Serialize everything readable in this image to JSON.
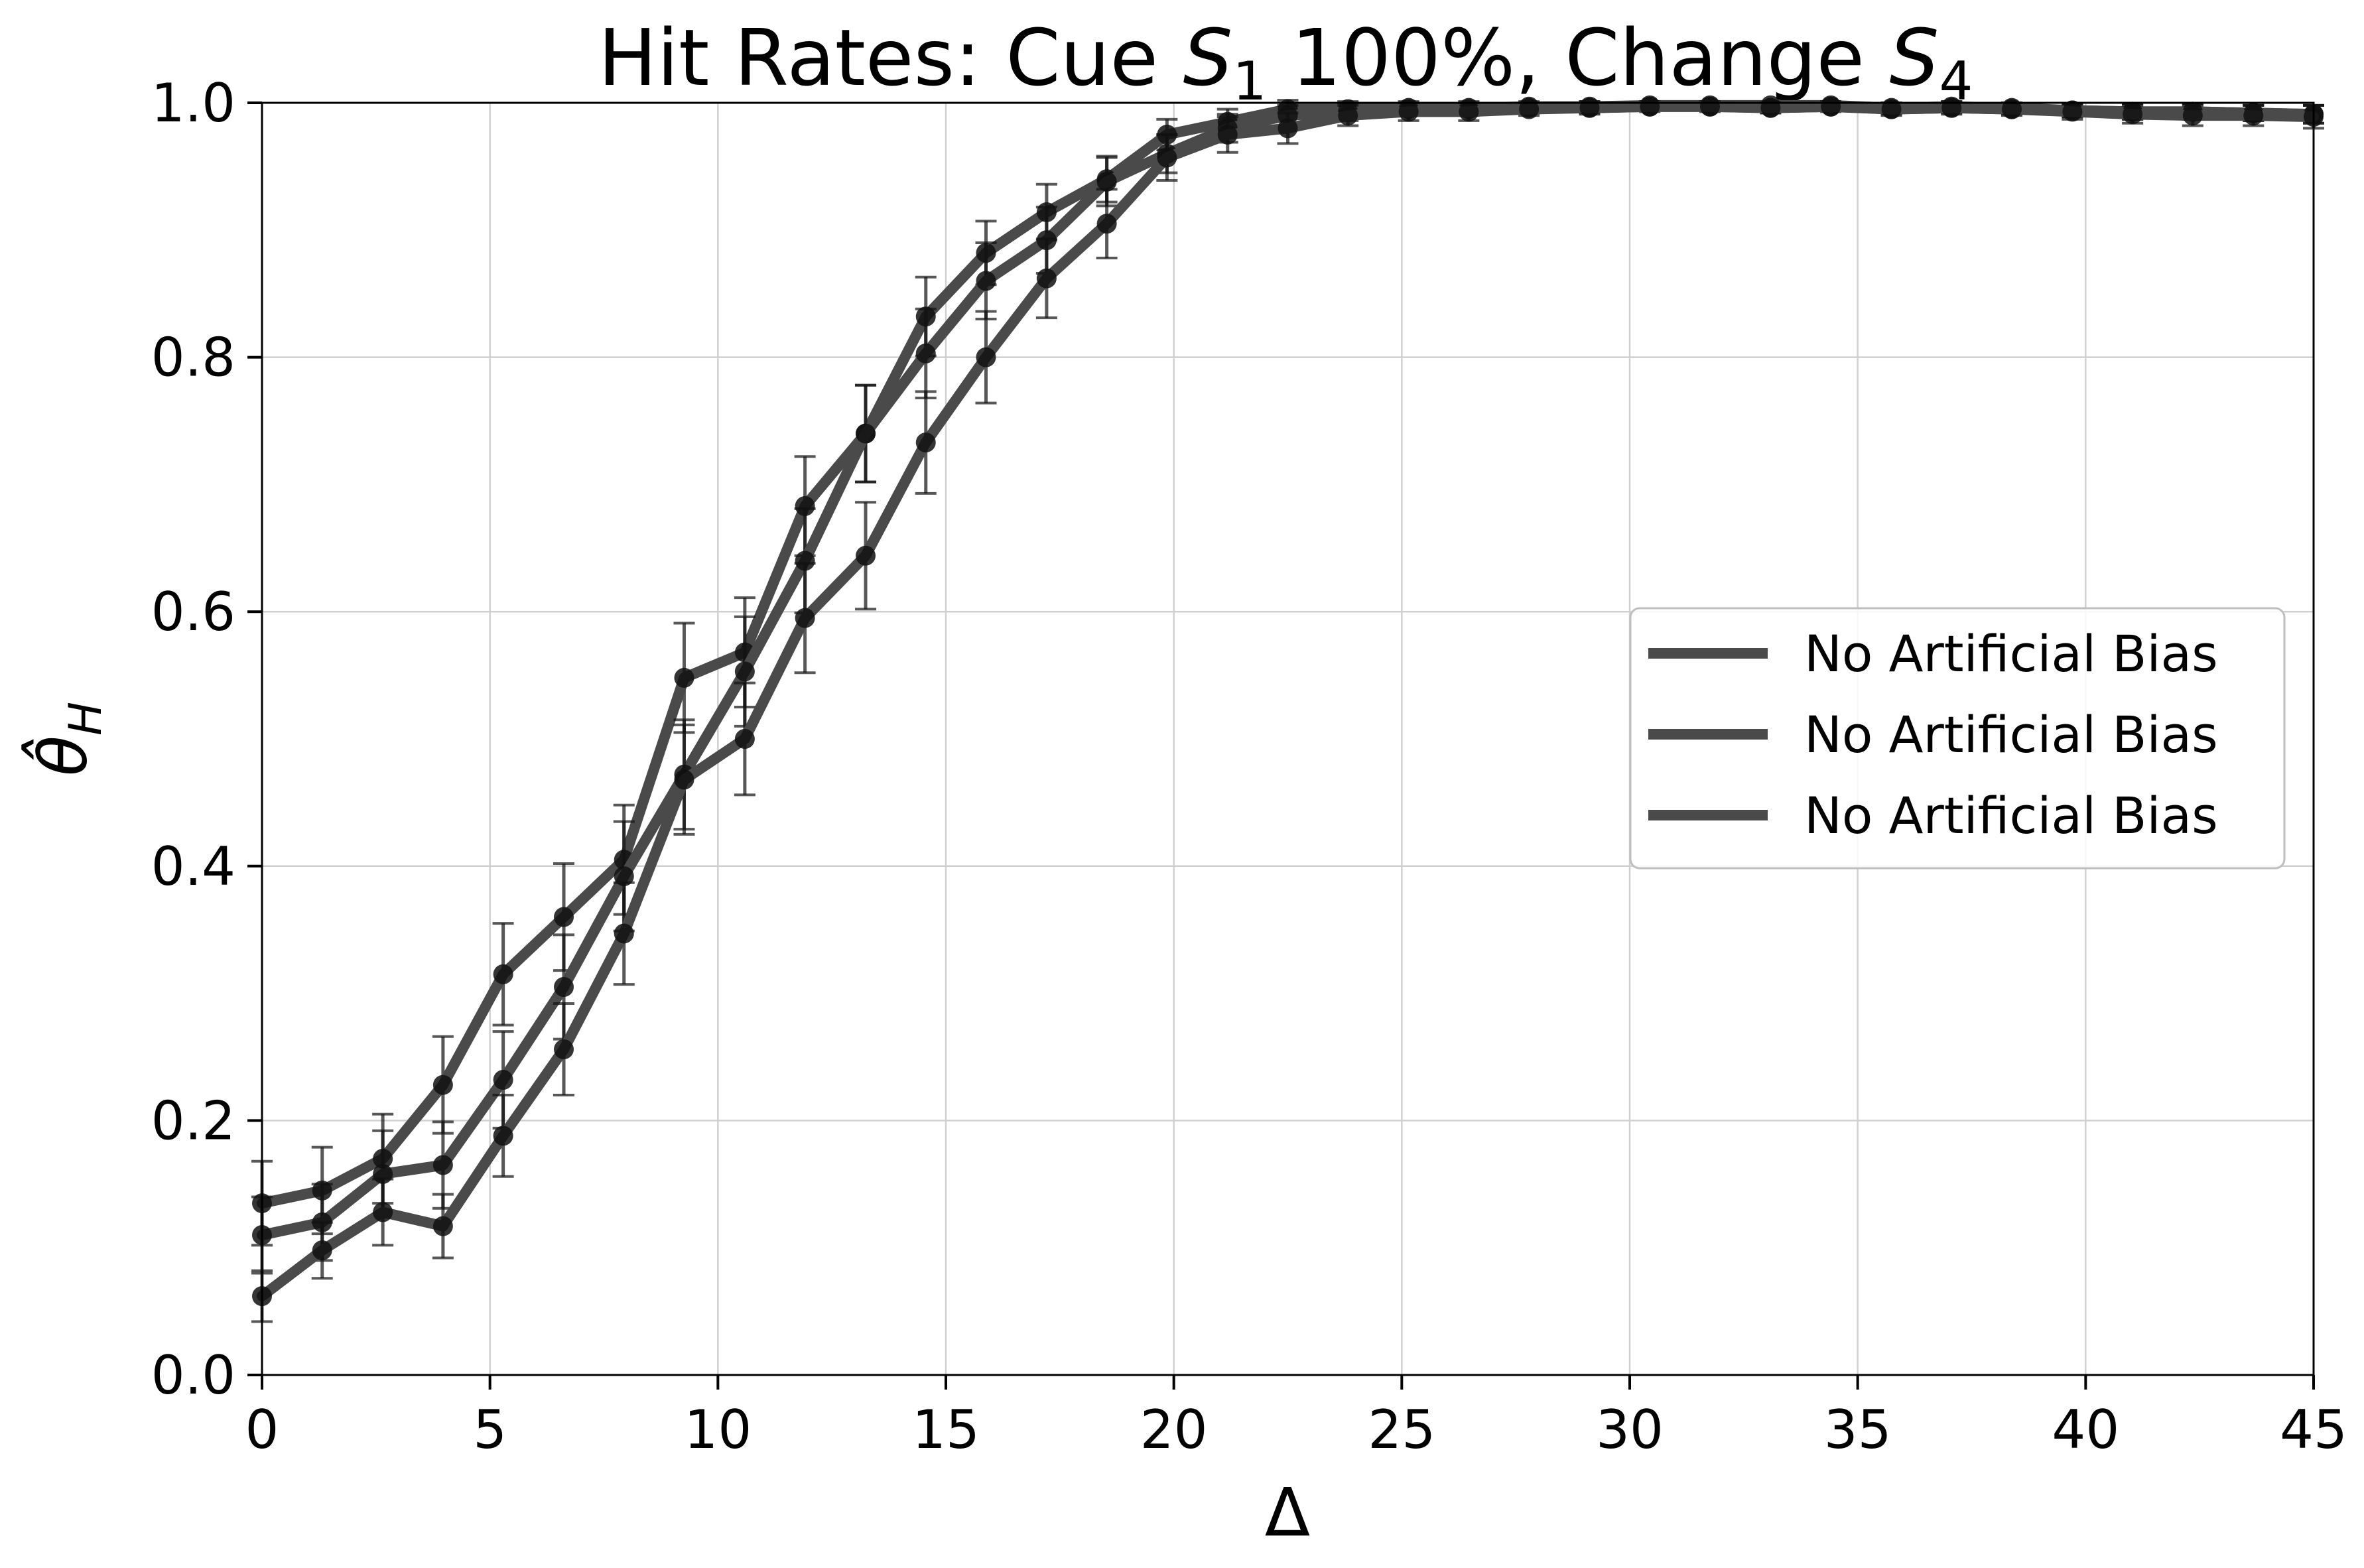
{
  "chart_data": {
    "type": "line",
    "title_parts": {
      "prefix": "Hit Rates: Cue ",
      "s1_var": "S",
      "s1_sub": "1",
      "mid": " 100%, Change ",
      "s4_var": "S",
      "s4_sub": "4"
    },
    "xlabel": "Δ",
    "ylabel": {
      "symbol": "θ̂",
      "sub": "H"
    },
    "xlim": [
      0,
      45
    ],
    "ylim": [
      0.0,
      1.0
    ],
    "xticks": [
      0,
      5,
      10,
      15,
      20,
      25,
      30,
      35,
      40,
      45
    ],
    "xtick_labels": [
      "0",
      "5",
      "10",
      "15",
      "20",
      "25",
      "30",
      "35",
      "40",
      "45"
    ],
    "yticks": [
      0.0,
      0.2,
      0.4,
      0.6,
      0.8,
      1.0
    ],
    "ytick_labels": [
      "0.0",
      "0.2",
      "0.4",
      "0.6",
      "0.8",
      "1.0"
    ],
    "grid": true,
    "legend_position": "center-right",
    "line_color": "#4a4a4a",
    "marker_color": "#111111",
    "x": [
      0,
      1.32,
      2.65,
      3.97,
      5.29,
      6.62,
      7.94,
      9.26,
      10.59,
      11.91,
      13.24,
      14.56,
      15.88,
      17.21,
      18.53,
      19.85,
      21.18,
      22.5,
      23.82,
      25.15,
      26.47,
      27.79,
      29.12,
      30.44,
      31.76,
      33.09,
      34.41,
      35.74,
      37.06,
      38.38,
      39.71,
      41.03,
      42.35,
      43.68,
      45
    ],
    "series": [
      {
        "name": "No Artificial Bias",
        "values": [
          0.135,
          0.145,
          0.17,
          0.228,
          0.315,
          0.36,
          0.405,
          0.548,
          0.568,
          0.683,
          0.74,
          0.832,
          0.882,
          0.914,
          0.94,
          0.975,
          0.985,
          0.995,
          0.995,
          0.996,
          0.996,
          0.997,
          0.997,
          0.998,
          0.998,
          0.998,
          0.998,
          0.996,
          0.997,
          0.996,
          0.994,
          0.993,
          0.993,
          0.992,
          0.991
        ],
        "errors": [
          0.033,
          0.034,
          0.035,
          0.038,
          0.04,
          0.042,
          0.043,
          0.043,
          0.043,
          0.039,
          0.038,
          0.031,
          0.025,
          0.022,
          0.018,
          0.012,
          0.01,
          0.007,
          0.006,
          0.005,
          0.005,
          0.004,
          0.004,
          0.003,
          0.003,
          0.003,
          0.003,
          0.004,
          0.004,
          0.004,
          0.005,
          0.006,
          0.006,
          0.006,
          0.007
        ]
      },
      {
        "name": "No Artificial Bias",
        "values": [
          0.11,
          0.12,
          0.158,
          0.165,
          0.232,
          0.305,
          0.392,
          0.472,
          0.553,
          0.64,
          0.74,
          0.803,
          0.86,
          0.892,
          0.938,
          0.96,
          0.98,
          0.99,
          0.993,
          0.995,
          0.995,
          0.996,
          0.996,
          0.997,
          0.997,
          0.996,
          0.997,
          0.995,
          0.996,
          0.995,
          0.994,
          0.993,
          0.993,
          0.992,
          0.991
        ],
        "errors": [
          0.03,
          0.03,
          0.034,
          0.034,
          0.038,
          0.041,
          0.043,
          0.043,
          0.043,
          0.041,
          0.038,
          0.035,
          0.03,
          0.026,
          0.019,
          0.015,
          0.011,
          0.008,
          0.007,
          0.005,
          0.005,
          0.004,
          0.004,
          0.003,
          0.003,
          0.004,
          0.003,
          0.004,
          0.004,
          0.004,
          0.005,
          0.006,
          0.006,
          0.006,
          0.007
        ]
      },
      {
        "name": "No Artificial Bias",
        "values": [
          0.062,
          0.098,
          0.128,
          0.117,
          0.188,
          0.256,
          0.347,
          0.468,
          0.5,
          0.595,
          0.644,
          0.733,
          0.8,
          0.862,
          0.905,
          0.957,
          0.975,
          0.98,
          0.99,
          0.993,
          0.993,
          0.995,
          0.996,
          0.997,
          0.997,
          0.996,
          0.997,
          0.995,
          0.996,
          0.995,
          0.993,
          0.991,
          0.99,
          0.99,
          0.989
        ],
        "errors": [
          0.02,
          0.022,
          0.026,
          0.025,
          0.032,
          0.036,
          0.04,
          0.043,
          0.044,
          0.043,
          0.042,
          0.04,
          0.036,
          0.031,
          0.027,
          0.018,
          0.014,
          0.012,
          0.008,
          0.007,
          0.007,
          0.005,
          0.005,
          0.004,
          0.004,
          0.004,
          0.004,
          0.005,
          0.005,
          0.005,
          0.006,
          0.007,
          0.008,
          0.008,
          0.009
        ]
      }
    ]
  }
}
